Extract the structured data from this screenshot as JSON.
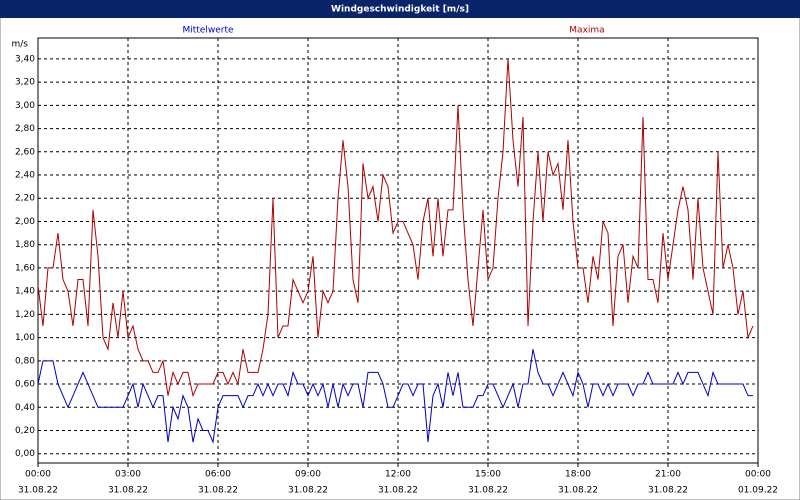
{
  "chart_data": {
    "type": "line",
    "title": "Windgeschwindigkeit [m/s]",
    "y_label": "m/s",
    "x": [
      0,
      10,
      20,
      30,
      40,
      50,
      60,
      70,
      80,
      90,
      100,
      110,
      120,
      130,
      140,
      150,
      160,
      170,
      180,
      190,
      200,
      210,
      220,
      230,
      240,
      250,
      260,
      270,
      280,
      290,
      300,
      310,
      320,
      330,
      340,
      350,
      360,
      370,
      380,
      390,
      400,
      410,
      420,
      430,
      440,
      450,
      460,
      470,
      480,
      490,
      500,
      510,
      520,
      530,
      540,
      550,
      560,
      570,
      580,
      590,
      600,
      610,
      620,
      630,
      640,
      650,
      660,
      670,
      680,
      690,
      700,
      710,
      720,
      730,
      740,
      750,
      760,
      770,
      780,
      790,
      800,
      810,
      820,
      830,
      840,
      850,
      860,
      870,
      880,
      890,
      900,
      910,
      920,
      930,
      940,
      950,
      960,
      970,
      980,
      990,
      1000,
      1010,
      1020,
      1030,
      1040,
      1050,
      1060,
      1070,
      1080,
      1090,
      1100,
      1110,
      1120,
      1130,
      1140,
      1150,
      1160,
      1170,
      1180,
      1190,
      1200,
      1210,
      1220,
      1230,
      1240,
      1250,
      1260,
      1270,
      1280,
      1290,
      1300,
      1310,
      1320,
      1330,
      1340,
      1350,
      1360,
      1370,
      1380,
      1390,
      1400,
      1410,
      1420,
      1430
    ],
    "series": [
      {
        "name": "Mittelwerte",
        "color": "#0000c8",
        "values": [
          0.6,
          0.8,
          0.8,
          0.8,
          0.6,
          0.5,
          0.4,
          0.5,
          0.6,
          0.7,
          0.6,
          0.5,
          0.4,
          0.4,
          0.4,
          0.4,
          0.4,
          0.4,
          0.5,
          0.6,
          0.4,
          0.6,
          0.5,
          0.4,
          0.5,
          0.5,
          0.1,
          0.4,
          0.3,
          0.5,
          0.4,
          0.1,
          0.3,
          0.2,
          0.2,
          0.1,
          0.4,
          0.5,
          0.5,
          0.5,
          0.5,
          0.4,
          0.5,
          0.5,
          0.6,
          0.5,
          0.6,
          0.5,
          0.6,
          0.6,
          0.5,
          0.7,
          0.6,
          0.6,
          0.5,
          0.6,
          0.5,
          0.6,
          0.4,
          0.6,
          0.4,
          0.6,
          0.5,
          0.6,
          0.6,
          0.4,
          0.7,
          0.7,
          0.7,
          0.6,
          0.4,
          0.4,
          0.5,
          0.6,
          0.6,
          0.5,
          0.6,
          0.6,
          0.1,
          0.5,
          0.6,
          0.4,
          0.7,
          0.5,
          0.7,
          0.4,
          0.4,
          0.4,
          0.5,
          0.5,
          0.6,
          0.6,
          0.5,
          0.4,
          0.5,
          0.6,
          0.4,
          0.6,
          0.6,
          0.9,
          0.7,
          0.6,
          0.6,
          0.5,
          0.6,
          0.7,
          0.6,
          0.5,
          0.7,
          0.6,
          0.4,
          0.6,
          0.6,
          0.5,
          0.6,
          0.5,
          0.6,
          0.6,
          0.6,
          0.5,
          0.6,
          0.6,
          0.7,
          0.6,
          0.6,
          0.6,
          0.6,
          0.6,
          0.7,
          0.6,
          0.7,
          0.7,
          0.7,
          0.6,
          0.5,
          0.7,
          0.6,
          0.6,
          0.6,
          0.6,
          0.6,
          0.6,
          0.5,
          0.5
        ]
      },
      {
        "name": "Maxima",
        "color": "#b00000",
        "values": [
          1.45,
          1.1,
          1.6,
          1.6,
          1.9,
          1.5,
          1.4,
          1.1,
          1.5,
          1.5,
          1.1,
          2.1,
          1.7,
          1.0,
          0.9,
          1.3,
          1.0,
          1.4,
          1.0,
          1.1,
          0.9,
          0.8,
          0.8,
          0.7,
          0.7,
          0.8,
          0.5,
          0.7,
          0.6,
          0.7,
          0.7,
          0.5,
          0.6,
          0.6,
          0.6,
          0.6,
          0.7,
          0.7,
          0.6,
          0.7,
          0.6,
          0.9,
          0.7,
          0.7,
          0.7,
          0.9,
          1.2,
          2.2,
          1.0,
          1.1,
          1.1,
          1.5,
          1.4,
          1.3,
          1.4,
          1.7,
          1.0,
          1.4,
          1.3,
          1.4,
          2.2,
          2.7,
          2.3,
          1.5,
          1.3,
          2.5,
          2.2,
          2.3,
          2.0,
          2.4,
          2.3,
          1.9,
          2.0,
          2.0,
          1.9,
          1.8,
          1.5,
          2.0,
          2.2,
          1.7,
          2.2,
          1.7,
          2.1,
          2.1,
          3.0,
          2.1,
          1.5,
          1.1,
          1.6,
          2.1,
          1.5,
          1.6,
          2.2,
          2.6,
          3.4,
          2.7,
          2.3,
          2.9,
          1.1,
          2.0,
          2.6,
          2.0,
          2.6,
          2.4,
          2.5,
          2.1,
          2.7,
          2.0,
          1.6,
          1.6,
          1.3,
          1.7,
          1.5,
          2.0,
          1.9,
          1.1,
          1.7,
          1.8,
          1.3,
          1.7,
          1.6,
          2.9,
          1.5,
          1.5,
          1.3,
          1.9,
          1.5,
          1.8,
          2.1,
          2.3,
          2.1,
          1.5,
          2.2,
          1.6,
          1.4,
          1.2,
          2.6,
          1.6,
          1.8,
          1.6,
          1.2,
          1.4,
          1.0,
          1.1
        ]
      }
    ],
    "xlim": [
      0,
      1440
    ],
    "xticks": [
      {
        "value": 0,
        "label": "00:00",
        "date": "31.08.22"
      },
      {
        "value": 180,
        "label": "03:00",
        "date": "31.08.22"
      },
      {
        "value": 360,
        "label": "06:00",
        "date": "31.08.22"
      },
      {
        "value": 540,
        "label": "09:00",
        "date": "31.08.22"
      },
      {
        "value": 720,
        "label": "12:00",
        "date": "31.08.22"
      },
      {
        "value": 900,
        "label": "15:00",
        "date": "31.08.22"
      },
      {
        "value": 1080,
        "label": "18:00",
        "date": "31.08.22"
      },
      {
        "value": 1260,
        "label": "21:00",
        "date": "31.08.22"
      },
      {
        "value": 1440,
        "label": "00:00",
        "date": "01.09.22"
      }
    ],
    "ylim": [
      -0.08,
      3.58
    ],
    "yticks": [
      {
        "value": 0,
        "label": "0,00"
      },
      {
        "value": 0.2,
        "label": "0,20"
      },
      {
        "value": 0.4,
        "label": "0,40"
      },
      {
        "value": 0.6,
        "label": "0,60"
      },
      {
        "value": 0.8,
        "label": "0,80"
      },
      {
        "value": 1.0,
        "label": "1,00"
      },
      {
        "value": 1.2,
        "label": "1,20"
      },
      {
        "value": 1.4,
        "label": "1,40"
      },
      {
        "value": 1.6,
        "label": "1,60"
      },
      {
        "value": 1.8,
        "label": "1,80"
      },
      {
        "value": 2.0,
        "label": "2,00"
      },
      {
        "value": 2.2,
        "label": "2,20"
      },
      {
        "value": 2.4,
        "label": "2,40"
      },
      {
        "value": 2.6,
        "label": "2,60"
      },
      {
        "value": 2.8,
        "label": "2,80"
      },
      {
        "value": 3.0,
        "label": "3,00"
      },
      {
        "value": 3.2,
        "label": "3,20"
      },
      {
        "value": 3.4,
        "label": "3,40"
      }
    ],
    "grid": true
  }
}
